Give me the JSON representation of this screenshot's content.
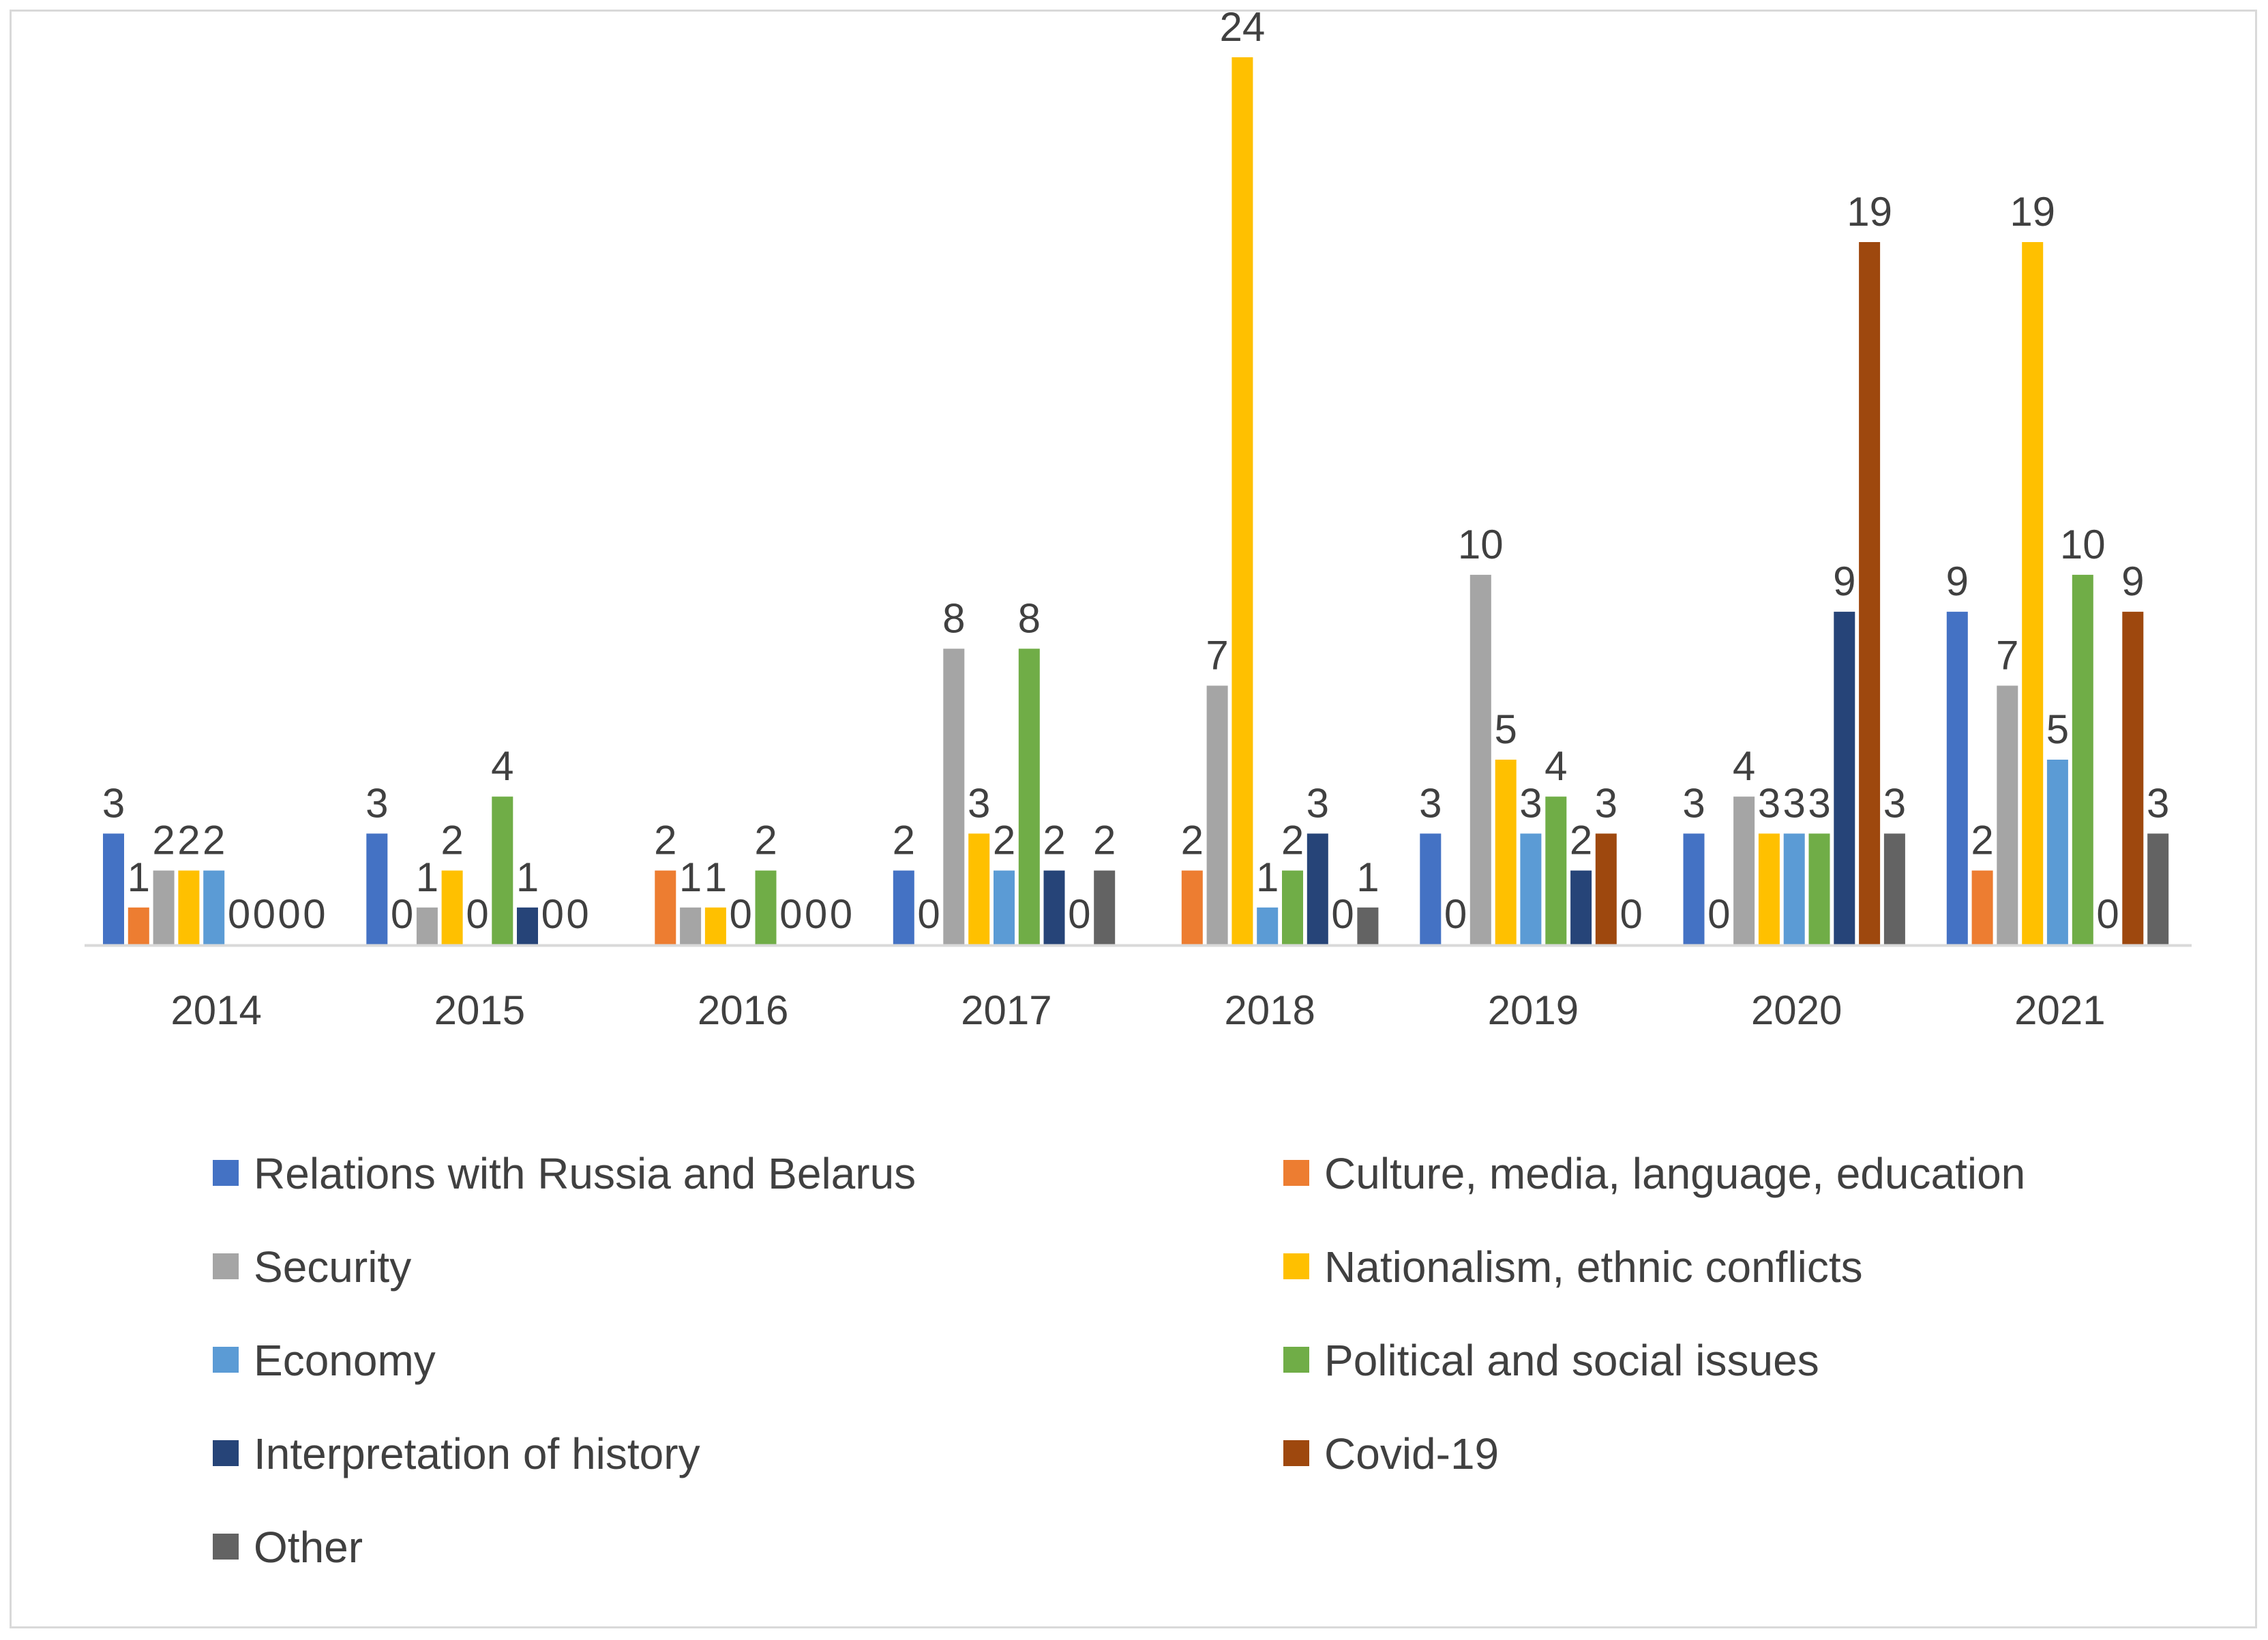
{
  "chart_data": {
    "type": "bar",
    "title": "",
    "xlabel": "",
    "ylabel": "",
    "ylim": [
      0,
      24
    ],
    "grid": false,
    "legend_position": "bottom",
    "categories": [
      "2014",
      "2015",
      "2016",
      "2017",
      "2018",
      "2019",
      "2020",
      "2021"
    ],
    "series": [
      {
        "name": "Relations with Russia and Belarus",
        "color": "#4472C4",
        "values": [
          3,
          3,
          null,
          2,
          null,
          3,
          3,
          9
        ],
        "labels": [
          "3",
          "3",
          "",
          "2",
          "",
          "3",
          "3",
          "9"
        ]
      },
      {
        "name": "Culture, media, language, education",
        "color": "#ED7D31",
        "values": [
          1,
          0,
          2,
          0,
          2,
          0,
          0,
          2
        ],
        "labels": [
          "1",
          "0",
          "2",
          "0",
          "2",
          "0",
          "0",
          "2"
        ]
      },
      {
        "name": "Security",
        "color": "#A5A5A5",
        "values": [
          2,
          1,
          1,
          8,
          7,
          10,
          4,
          7
        ],
        "labels": [
          "2",
          "1",
          "1",
          "8",
          "7",
          "10",
          "4",
          "7"
        ]
      },
      {
        "name": "Nationalism, ethnic conflicts",
        "color": "#FFC000",
        "values": [
          2,
          2,
          1,
          3,
          24,
          5,
          3,
          19
        ],
        "labels": [
          "2",
          "2",
          "1",
          "3",
          "24",
          "5",
          "3",
          "19"
        ]
      },
      {
        "name": "Economy",
        "color": "#5B9BD5",
        "values": [
          2,
          0,
          0,
          2,
          1,
          3,
          3,
          5
        ],
        "labels": [
          "2",
          "0",
          "0",
          "2",
          "1",
          "3",
          "3",
          "5"
        ]
      },
      {
        "name": "Political and social issues",
        "color": "#70AD47",
        "values": [
          0,
          4,
          2,
          8,
          2,
          4,
          3,
          10
        ],
        "labels": [
          "0",
          "4",
          "2",
          "8",
          "2",
          "4",
          "3",
          "10"
        ]
      },
      {
        "name": "Interpretation of history",
        "color": "#264478",
        "values": [
          0,
          1,
          0,
          2,
          3,
          2,
          9,
          0
        ],
        "labels": [
          "0",
          "1",
          "0",
          "2",
          "3",
          "2",
          "9",
          "0"
        ]
      },
      {
        "name": "Covid-19",
        "color": "#9E480E",
        "values": [
          0,
          0,
          0,
          0,
          0,
          3,
          19,
          9
        ],
        "labels": [
          "0",
          "0",
          "0",
          "0",
          "0",
          "3",
          "19",
          "9"
        ]
      },
      {
        "name": "Other",
        "color": "#636363",
        "values": [
          0,
          0,
          0,
          2,
          1,
          0,
          3,
          3
        ],
        "labels": [
          "0",
          "0",
          "0",
          "2",
          "1",
          "0",
          "3",
          "3"
        ]
      }
    ]
  }
}
